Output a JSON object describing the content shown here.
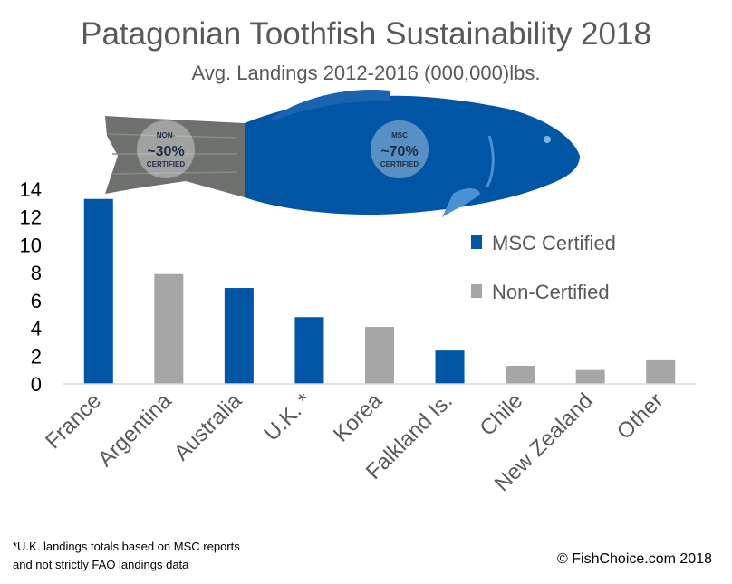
{
  "chart_data": {
    "type": "bar",
    "title": "Patagonian Toothfish Sustainability 2018",
    "subtitle": "Avg. Landings 2012-2016 (000,000)lbs.",
    "categories": [
      "France",
      "Argentina",
      "Australia",
      "U.K. *",
      "Korea",
      "Falkland Is.",
      "Chile",
      "New Zealand",
      "Other"
    ],
    "values": [
      13.3,
      7.9,
      6.9,
      4.8,
      4.1,
      2.4,
      1.3,
      1.0,
      1.7
    ],
    "certification": [
      "MSC Certified",
      "Non-Certified",
      "MSC Certified",
      "MSC Certified",
      "Non-Certified",
      "MSC Certified",
      "Non-Certified",
      "Non-Certified",
      "Non-Certified"
    ],
    "legend": [
      "MSC Certified",
      "Non-Certified"
    ],
    "legend_position": "right",
    "ylim": [
      0,
      14
    ],
    "yticks": [
      0,
      2,
      4,
      6,
      8,
      10,
      12,
      14
    ],
    "grid": false,
    "xlabel": "",
    "ylabel": "",
    "colors": {
      "msc": "#0055A4",
      "non": "#A6A6A6",
      "axis": "#D9D9D9",
      "tick_text": "#000000"
    },
    "illustration": {
      "icon": "toothfish-icon",
      "badge_non": {
        "line1": "NON-",
        "line2": "~30%",
        "line3": "CERTIFIED"
      },
      "badge_msc": {
        "line1": "MSC",
        "line2": "~70%",
        "line3": "CERTIFIED"
      }
    }
  },
  "footnote": {
    "line1": "*U.K. landings totals based on MSC reports",
    "line2": "and not strictly FAO landings data"
  },
  "copyright": "© FishChoice.com 2018"
}
